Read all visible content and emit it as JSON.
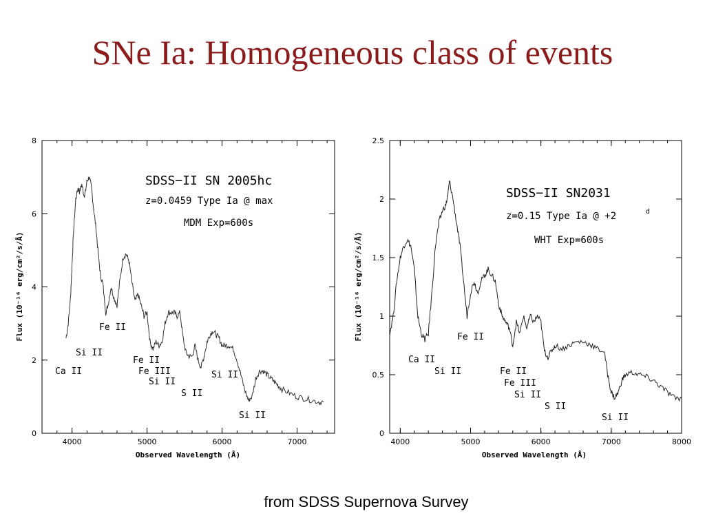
{
  "slide": {
    "title": "SNe Ia: Homogeneous class of events",
    "footer": "from SDSS Supernova Survey"
  },
  "chart_data": [
    {
      "type": "line",
      "xlabel": "Observed Wavelength (Å)",
      "ylabel": "Flux (10⁻¹⁶ erg/cm²/s/Å)",
      "xlim": [
        3600,
        7500
      ],
      "ylim": [
        0,
        8
      ],
      "xticks": [
        "4000",
        "5000",
        "6000",
        "7000"
      ],
      "yticks": [
        "0",
        "2",
        "4",
        "6",
        "8"
      ],
      "grid": false,
      "annotations": [
        "SDSS−II  SN 2005hc",
        "z=0.0459  Type Ia @ max",
        "MDM Exp=600s"
      ],
      "line_labels": [
        "Ca II",
        "Si II",
        "Fe II",
        "Fe II",
        "Fe III",
        "Si II",
        "S II",
        "Si II",
        "Si II"
      ],
      "series": [
        {
          "x": [
            3920,
            3950,
            3980,
            4000,
            4020,
            4050,
            4080,
            4100,
            4130,
            4160,
            4180,
            4200,
            4230,
            4260,
            4290,
            4320,
            4350,
            4380,
            4410,
            4450,
            4480,
            4520,
            4560,
            4600,
            4640,
            4680,
            4720,
            4760,
            4800,
            4840,
            4880,
            4920,
            4960,
            5000,
            5040,
            5080,
            5120,
            5160,
            5200,
            5240,
            5280,
            5320,
            5360,
            5400,
            5440,
            5480,
            5520,
            5560,
            5600,
            5640,
            5680,
            5720,
            5760,
            5800,
            5840,
            5880,
            5920,
            5960,
            6000,
            6050,
            6100,
            6150,
            6200,
            6250,
            6300,
            6350,
            6400,
            6450,
            6500,
            6550,
            6600,
            6650,
            6700,
            6750,
            6800,
            6900,
            7000,
            7100,
            7200,
            7300,
            7350
          ],
          "y": [
            2.6,
            3.0,
            3.7,
            4.6,
            5.5,
            6.4,
            6.7,
            6.6,
            6.8,
            6.5,
            6.6,
            6.9,
            7.0,
            6.7,
            6.1,
            5.6,
            4.9,
            4.3,
            4.1,
            3.3,
            3.5,
            4.0,
            3.7,
            3.5,
            4.2,
            4.8,
            4.9,
            4.7,
            4.1,
            3.6,
            3.8,
            3.5,
            3.2,
            3.3,
            2.5,
            2.3,
            2.5,
            2.4,
            2.5,
            3.0,
            3.3,
            3.3,
            3.3,
            3.2,
            3.3,
            2.6,
            2.2,
            2.1,
            2.1,
            2.4,
            2.0,
            1.8,
            2.1,
            2.5,
            2.7,
            2.8,
            2.7,
            2.6,
            2.4,
            2.4,
            2.4,
            2.3,
            2.0,
            1.6,
            1.2,
            0.9,
            1.0,
            1.5,
            1.7,
            1.7,
            1.6,
            1.5,
            1.4,
            1.3,
            1.2,
            1.1,
            1.0,
            0.95,
            0.9,
            0.85,
            0.85
          ]
        }
      ]
    },
    {
      "type": "line",
      "xlabel": "Observed Wavelength (Å)",
      "ylabel": "Flux (10⁻¹⁶ erg/cm²/s/Å)",
      "xlim": [
        3850,
        8000
      ],
      "ylim": [
        0,
        2.5
      ],
      "xticks": [
        "4000",
        "5000",
        "6000",
        "7000",
        "8000"
      ],
      "yticks": [
        "0",
        "0.5",
        "1",
        "1.5",
        "2",
        "2.5"
      ],
      "grid": false,
      "annotations": [
        "SDSS−II  SN2031",
        "z=0.15  Type Ia @ +2",
        "d",
        "WHT Exp=600s"
      ],
      "line_labels": [
        "Ca II",
        "Si II",
        "Fe II",
        "Fe II",
        "Fe III",
        "Si II",
        "S II",
        "Si II"
      ],
      "series": [
        {
          "x": [
            3850,
            3900,
            3950,
            4000,
            4050,
            4100,
            4150,
            4200,
            4250,
            4300,
            4350,
            4400,
            4450,
            4500,
            4550,
            4600,
            4650,
            4680,
            4700,
            4750,
            4800,
            4850,
            4900,
            4950,
            5000,
            5050,
            5100,
            5150,
            5200,
            5250,
            5300,
            5350,
            5400,
            5450,
            5500,
            5550,
            5600,
            5650,
            5700,
            5750,
            5800,
            5850,
            5900,
            5950,
            6000,
            6050,
            6100,
            6150,
            6200,
            6300,
            6400,
            6500,
            6600,
            6700,
            6800,
            6900,
            6950,
            7000,
            7050,
            7100,
            7150,
            7200,
            7300,
            7400,
            7500,
            7600,
            7700,
            7800,
            7900,
            8000
          ],
          "y": [
            0.85,
            1.0,
            1.3,
            1.5,
            1.6,
            1.65,
            1.6,
            1.4,
            1.0,
            0.85,
            0.8,
            0.85,
            1.2,
            1.6,
            1.8,
            1.9,
            1.95,
            2.05,
            2.15,
            2.0,
            1.8,
            1.6,
            1.3,
            1.0,
            1.2,
            1.3,
            1.2,
            1.3,
            1.35,
            1.4,
            1.35,
            1.3,
            1.1,
            1.0,
            0.95,
            0.9,
            0.75,
            0.95,
            0.85,
            1.0,
            0.9,
            1.0,
            0.95,
            1.0,
            0.95,
            0.7,
            0.65,
            0.7,
            0.75,
            0.72,
            0.75,
            0.78,
            0.78,
            0.76,
            0.72,
            0.7,
            0.5,
            0.35,
            0.3,
            0.35,
            0.45,
            0.5,
            0.52,
            0.5,
            0.48,
            0.45,
            0.4,
            0.35,
            0.3,
            0.3
          ]
        }
      ]
    }
  ]
}
